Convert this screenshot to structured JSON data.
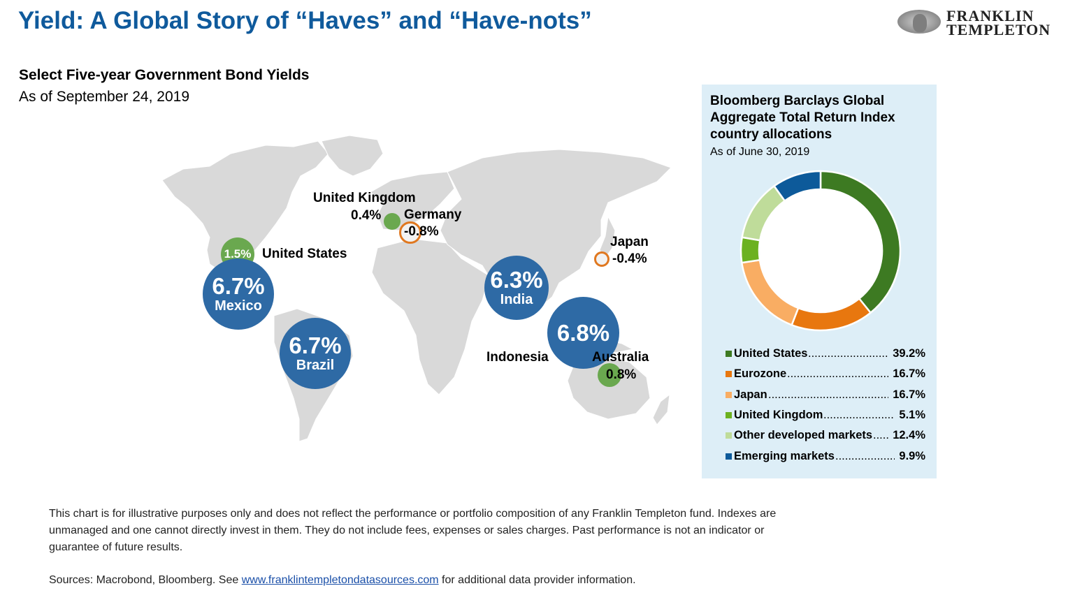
{
  "title": "Yield: A Global Story of “Haves” and “Have-nots”",
  "logo": {
    "line1": "FRANKLIN",
    "line2": "TEMPLETON"
  },
  "map": {
    "subtitle": "Select Five-year Government Bond Yields",
    "date": "As of September 24, 2019",
    "bubbles": [
      {
        "country": "United States",
        "yield": "1.5%",
        "value": 1.5,
        "kind": "positive-small"
      },
      {
        "country": "Mexico",
        "yield": "6.7%",
        "value": 6.7,
        "kind": "positive-large"
      },
      {
        "country": "Brazil",
        "yield": "6.7%",
        "value": 6.7,
        "kind": "positive-large"
      },
      {
        "country": "United Kingdom",
        "yield": "0.4%",
        "value": 0.4,
        "kind": "positive-small"
      },
      {
        "country": "Germany",
        "yield": "-0.8%",
        "value": -0.8,
        "kind": "negative"
      },
      {
        "country": "India",
        "yield": "6.3%",
        "value": 6.3,
        "kind": "positive-large"
      },
      {
        "country": "Indonesia",
        "yield": "6.8%",
        "value": 6.8,
        "kind": "positive-large"
      },
      {
        "country": "Japan",
        "yield": "-0.4%",
        "value": -0.4,
        "kind": "negative"
      },
      {
        "country": "Australia",
        "yield": "0.8%",
        "value": 0.8,
        "kind": "positive-small"
      }
    ]
  },
  "chart_data": {
    "type": "pie",
    "title": "Bloomberg Barclays Global Aggregate Total Return Index country allocations",
    "subtitle": "As of June 30, 2019",
    "donut": true,
    "legend_position": "bottom",
    "slices": [
      {
        "name": "United States",
        "value": 39.2,
        "label": "39.2%",
        "color": "#3d7a22"
      },
      {
        "name": "Eurozone",
        "value": 16.7,
        "label": "16.7%",
        "color": "#e8770f"
      },
      {
        "name": "Japan",
        "value": 16.7,
        "label": "16.7%",
        "color": "#f9ad63"
      },
      {
        "name": "United Kingdom",
        "value": 5.1,
        "label": "5.1%",
        "color": "#6cb120"
      },
      {
        "name": "Other developed markets",
        "value": 12.4,
        "label": "12.4%",
        "color": "#bfdc9a"
      },
      {
        "name": "Emerging markets",
        "value": 9.9,
        "label": "9.9%",
        "color": "#0d5a9a"
      }
    ]
  },
  "footer": {
    "disclaimer": "This chart is for illustrative purposes only and does not reflect the performance or portfolio composition of any Franklin Templeton fund. Indexes are unmanaged and one cannot directly invest in them. They do not include fees, expenses or sales charges. Past performance is not an indicator or guarantee of future results.",
    "sources_prefix": "Sources: Macrobond, Bloomberg. See ",
    "sources_link": "www.franklintempletondatasources.com",
    "sources_suffix": " for additional data provider information."
  }
}
